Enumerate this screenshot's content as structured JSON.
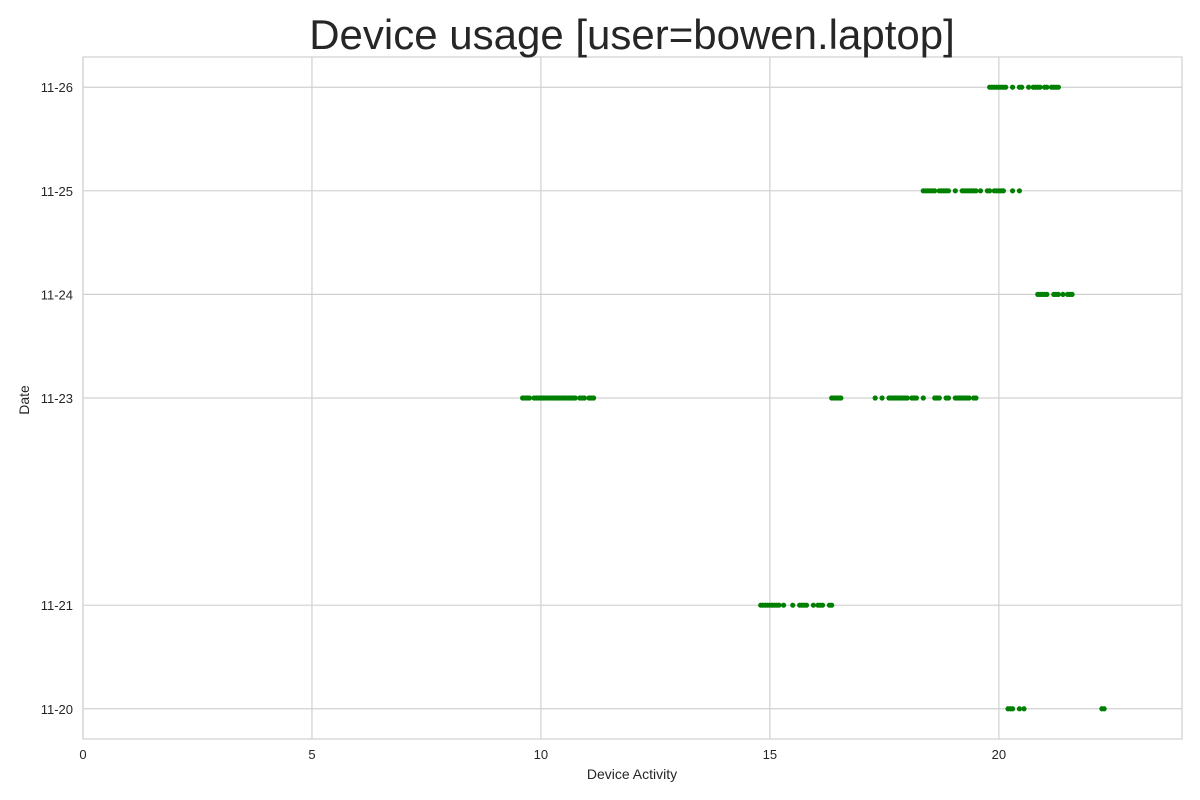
{
  "chart_data": {
    "type": "scatter",
    "title": "Device usage [user=bowen.laptop]",
    "xlabel": "Device Activity",
    "ylabel": "Date",
    "xlim": [
      0,
      24
    ],
    "x_ticks": [
      0,
      5,
      10,
      15,
      20
    ],
    "y_axis": {
      "type": "date",
      "range": [
        "2023-11-19T17:00",
        "2023-11-26T07:00"
      ],
      "tick_format": "MM-DD",
      "ticks": [
        {
          "date": "2023-11-20",
          "label": "11-20"
        },
        {
          "date": "2023-11-21",
          "label": "11-21"
        },
        {
          "date": "2023-11-23",
          "label": "11-23"
        },
        {
          "date": "2023-11-24",
          "label": "11-24"
        },
        {
          "date": "2023-11-25",
          "label": "11-25"
        },
        {
          "date": "2023-11-26",
          "label": "11-26"
        }
      ]
    },
    "grid": true,
    "marker_color": "#008000",
    "series": [
      {
        "date": "2023-11-20",
        "x": [
          20.2,
          20.25,
          20.3,
          20.45,
          20.55,
          22.25,
          22.3
        ]
      },
      {
        "date": "2023-11-21",
        "x": [
          14.8,
          14.85,
          14.9,
          14.95,
          15.0,
          15.05,
          15.1,
          15.15,
          15.2,
          15.3,
          15.5,
          15.65,
          15.7,
          15.75,
          15.8,
          15.95,
          16.05,
          16.1,
          16.15,
          16.3,
          16.35
        ]
      },
      {
        "date": "2023-11-23",
        "x": [
          9.6,
          9.65,
          9.7,
          9.75,
          9.85,
          9.9,
          9.95,
          10.0,
          10.05,
          10.1,
          10.15,
          10.2,
          10.25,
          10.3,
          10.35,
          10.4,
          10.45,
          10.5,
          10.55,
          10.6,
          10.65,
          10.7,
          10.75,
          10.85,
          10.9,
          10.95,
          11.05,
          11.1,
          11.15,
          16.35,
          16.4,
          16.45,
          16.5,
          16.55,
          17.3,
          17.45,
          17.6,
          17.65,
          17.7,
          17.75,
          17.8,
          17.85,
          17.9,
          17.95,
          18.0,
          18.1,
          18.15,
          18.2,
          18.35,
          18.6,
          18.65,
          18.7,
          18.85,
          18.9,
          19.05,
          19.1,
          19.15,
          19.2,
          19.25,
          19.3,
          19.35,
          19.45,
          19.5
        ]
      },
      {
        "date": "2023-11-24",
        "x": [
          20.85,
          20.9,
          20.95,
          21.0,
          21.05,
          21.2,
          21.25,
          21.3,
          21.4,
          21.5,
          21.55,
          21.6
        ]
      },
      {
        "date": "2023-11-25",
        "x": [
          18.35,
          18.4,
          18.45,
          18.5,
          18.55,
          18.6,
          18.7,
          18.75,
          18.8,
          18.85,
          18.9,
          19.05,
          19.2,
          19.25,
          19.3,
          19.35,
          19.4,
          19.45,
          19.5,
          19.6,
          19.75,
          19.8,
          19.9,
          19.95,
          20.0,
          20.05,
          20.1,
          20.3,
          20.45
        ]
      },
      {
        "date": "2023-11-26",
        "x": [
          19.8,
          19.85,
          19.9,
          19.95,
          20.0,
          20.05,
          20.1,
          20.15,
          20.3,
          20.45,
          20.5,
          20.65,
          20.75,
          20.8,
          20.85,
          20.9,
          21.0,
          21.05,
          21.15,
          21.2,
          21.25,
          21.3
        ]
      }
    ]
  }
}
